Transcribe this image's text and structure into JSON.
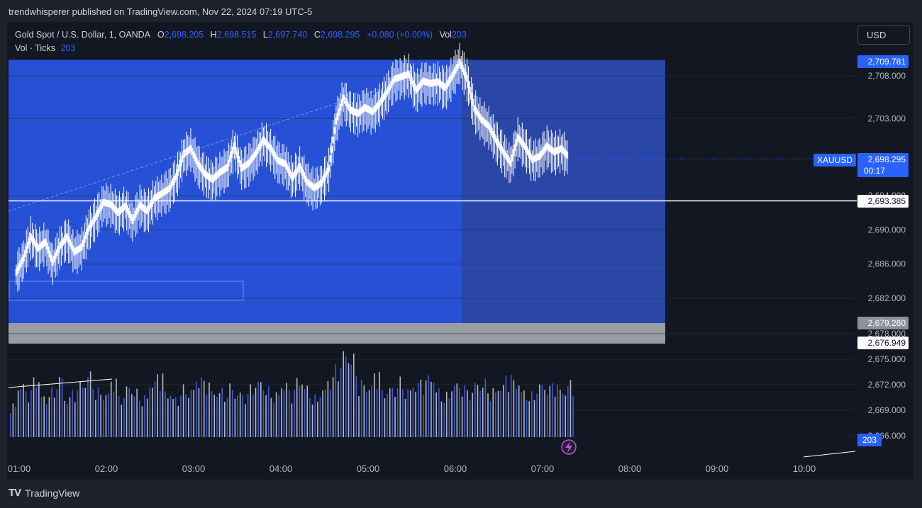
{
  "header": {
    "publisher": "trendwhisperer published on TradingView.com, Nov 22, 2024 07:19 UTC-5"
  },
  "legend": {
    "symbol": "Gold Spot / U.S. Dollar, 1, OANDA",
    "open_label": "O",
    "open": "2,698.205",
    "high_label": "H",
    "high": "2,698.515",
    "low_label": "L",
    "low": "2,697.740",
    "close_label": "C",
    "close": "2,698.295",
    "change": "+0.080 (+0.00%)",
    "vol_label": "Vol",
    "vol": "203",
    "indicator_name": "Vol · Ticks",
    "indicator_value": "203"
  },
  "currency": "USD",
  "price_axis": {
    "ticks": [
      "2,708.000",
      "2,703.000",
      "2,690.000",
      "2,686.000",
      "2,682.000",
      "2,675.000",
      "2,672.000",
      "2,669.000"
    ],
    "hidden_ticks": [
      "2,694.000",
      "2,678.000",
      "2,666.000"
    ],
    "labels": {
      "top": "2,709.781",
      "symbol": "XAUUSD",
      "last": "2,698.295",
      "countdown": "00:17",
      "line": "2,693.385",
      "gray": "2,679.260",
      "bottom": "2,676.949",
      "volume": "203"
    }
  },
  "time_axis": [
    "01:00",
    "02:00",
    "03:00",
    "04:00",
    "05:00",
    "06:00",
    "07:00",
    "08:00",
    "09:00",
    "10:00"
  ],
  "footer": {
    "brand": "TradingView",
    "logo": "TV"
  },
  "colors": {
    "background": "#131722",
    "zone_light": "#2651d6",
    "zone_dark": "#2a47a8",
    "gray_zone": "#9a9ca3",
    "accent": "#2962ff",
    "candle": "#ffffff",
    "vol_blue": "#3b5bdb",
    "vol_gray": "#b6b7be"
  },
  "chart_data": {
    "type": "line",
    "title": "Gold Spot / U.S. Dollar, 1, OANDA",
    "x_unit": "time (UTC-5)",
    "price_range": [
      2664,
      2712
    ],
    "levels": {
      "zone_top": 2709.781,
      "last": 2698.295,
      "horizontal_line": 2693.385,
      "gray_top": 2679.26,
      "gray_bottom": 2676.949
    },
    "series": [
      {
        "name": "XAUUSD",
        "points": [
          [
            "00:58",
            2684.8
          ],
          [
            "01:03",
            2686.5
          ],
          [
            "01:08",
            2689.0
          ],
          [
            "01:13",
            2687.6
          ],
          [
            "01:18",
            2688.4
          ],
          [
            "01:23",
            2686.0
          ],
          [
            "01:28",
            2687.9
          ],
          [
            "01:33",
            2689.0
          ],
          [
            "01:38",
            2687.2
          ],
          [
            "01:43",
            2687.8
          ],
          [
            "01:48",
            2690.0
          ],
          [
            "01:53",
            2691.4
          ],
          [
            "01:58",
            2693.0
          ],
          [
            "02:03",
            2692.8
          ],
          [
            "02:08",
            2691.8
          ],
          [
            "02:13",
            2692.6
          ],
          [
            "02:18",
            2690.9
          ],
          [
            "02:23",
            2692.7
          ],
          [
            "02:28",
            2692.0
          ],
          [
            "02:33",
            2693.5
          ],
          [
            "02:38",
            2694.0
          ],
          [
            "02:43",
            2694.6
          ],
          [
            "02:48",
            2696.0
          ],
          [
            "02:53",
            2698.6
          ],
          [
            "02:58",
            2699.3
          ],
          [
            "03:03",
            2697.5
          ],
          [
            "03:08",
            2696.3
          ],
          [
            "03:13",
            2695.7
          ],
          [
            "03:18",
            2696.5
          ],
          [
            "03:23",
            2697.1
          ],
          [
            "03:28",
            2699.6
          ],
          [
            "03:33",
            2697.0
          ],
          [
            "03:38",
            2697.6
          ],
          [
            "03:43",
            2698.8
          ],
          [
            "03:48",
            2700.3
          ],
          [
            "03:53",
            2699.3
          ],
          [
            "03:58",
            2697.9
          ],
          [
            "04:03",
            2697.5
          ],
          [
            "04:08",
            2695.9
          ],
          [
            "04:13",
            2697.2
          ],
          [
            "04:18",
            2695.4
          ],
          [
            "04:23",
            2694.7
          ],
          [
            "04:28",
            2695.3
          ],
          [
            "04:33",
            2697.0
          ],
          [
            "04:38",
            2702.5
          ],
          [
            "04:43",
            2705.2
          ],
          [
            "04:48",
            2703.8
          ],
          [
            "04:53",
            2703.4
          ],
          [
            "04:58",
            2704.1
          ],
          [
            "05:03",
            2703.6
          ],
          [
            "05:08",
            2704.6
          ],
          [
            "05:13",
            2705.9
          ],
          [
            "05:18",
            2707.4
          ],
          [
            "05:23",
            2707.7
          ],
          [
            "05:28",
            2708.0
          ],
          [
            "05:33",
            2706.1
          ],
          [
            "05:38",
            2707.2
          ],
          [
            "05:43",
            2706.9
          ],
          [
            "05:48",
            2707.1
          ],
          [
            "05:53",
            2706.4
          ],
          [
            "05:58",
            2707.8
          ],
          [
            "06:03",
            2709.4
          ],
          [
            "06:08",
            2707.5
          ],
          [
            "06:13",
            2704.0
          ],
          [
            "06:18",
            2702.7
          ],
          [
            "06:23",
            2701.9
          ],
          [
            "06:28",
            2700.3
          ],
          [
            "06:33",
            2698.9
          ],
          [
            "06:38",
            2697.6
          ],
          [
            "06:43",
            2700.6
          ],
          [
            "06:48",
            2699.5
          ],
          [
            "06:53",
            2698.0
          ],
          [
            "06:58",
            2698.4
          ],
          [
            "07:03",
            2699.6
          ],
          [
            "07:08",
            2698.9
          ],
          [
            "07:13",
            2699.3
          ],
          [
            "07:18",
            2698.295
          ]
        ]
      },
      {
        "name": "Vol · Ticks",
        "values": [
          120,
          190,
          165,
          210,
          150,
          175,
          220,
          140,
          168,
          198,
          235,
          175,
          160,
          205,
          145,
          185,
          170,
          150,
          198,
          225,
          160,
          145,
          185,
          175,
          210,
          198,
          165,
          175,
          190,
          160,
          152,
          185,
          205,
          178,
          162,
          192,
          168,
          208,
          185,
          150,
          175,
          210,
          255,
          310,
          295,
          205,
          185,
          230,
          165,
          182,
          212,
          176,
          190,
          203,
          220,
          175,
          160,
          195,
          182,
          164,
          198,
          205,
          175,
          185,
          220,
          200,
          170,
          160,
          195,
          180,
          190,
          170,
          203
        ]
      }
    ]
  }
}
